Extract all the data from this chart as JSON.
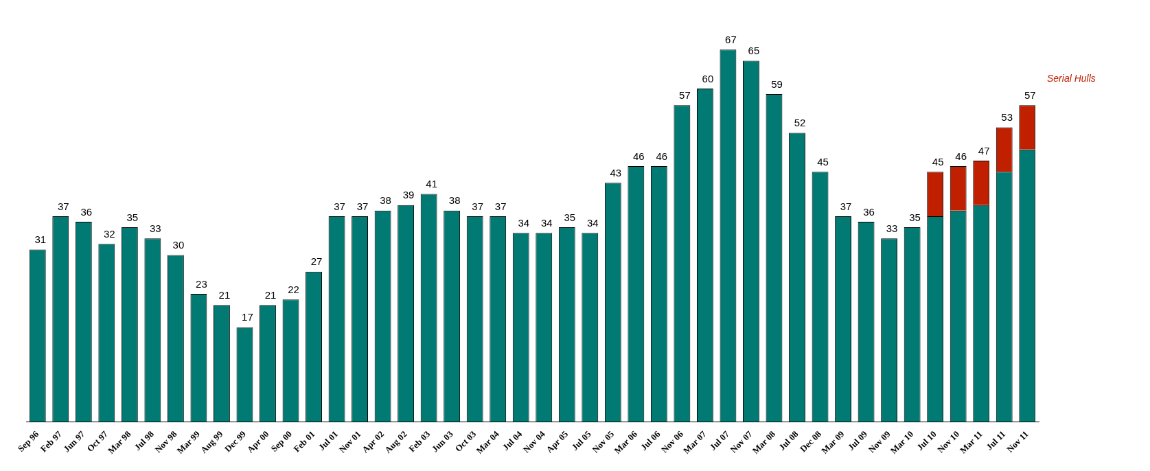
{
  "chart_data": {
    "type": "bar",
    "stacked": true,
    "categories": [
      "Sep 96",
      "Feb 97",
      "Jun 97",
      "Oct 97",
      "Mar 98",
      "Jul 98",
      "Nov 98",
      "Mar 99",
      "Aug 99",
      "Dec 99",
      "Apr 00",
      "Sep 00",
      "Feb 01",
      "Jul 01",
      "Nov 01",
      "Apr 02",
      "Aug 02",
      "Feb 03",
      "Jun 03",
      "Oct 03",
      "Mar 04",
      "Jul 04",
      "Nov 04",
      "Apr 05",
      "Jul 05",
      "Nov 05",
      "Mar 06",
      "Jul 06",
      "Nov 06",
      "Mar 07",
      "Jul 07",
      "Nov 07",
      "Mar 08",
      "Jul 08",
      "Dec 08",
      "Mar 09",
      "Jul 09",
      "Nov 09",
      "Mar 10",
      "Jul 10",
      "Nov 10",
      "Mar 11",
      "Jul 11",
      "Nov 11"
    ],
    "series": [
      {
        "color": "#007a72",
        "values": [
          31,
          37,
          36,
          32,
          35,
          33,
          30,
          23,
          21,
          17,
          21,
          22,
          27,
          37,
          37,
          38,
          39,
          41,
          38,
          37,
          37,
          34,
          34,
          35,
          34,
          43,
          46,
          46,
          57,
          60,
          67,
          65,
          59,
          52,
          45,
          37,
          36,
          33,
          35,
          37,
          38,
          39,
          45,
          49
        ],
        "value_labels": [
          "31",
          "37",
          "36",
          "32",
          "35",
          "33",
          "30",
          "23",
          "21",
          "17",
          "21",
          "22",
          "27",
          "37",
          "37",
          "38",
          "39",
          "41",
          "38",
          "37",
          "37",
          "34",
          "34",
          "35",
          "34",
          "43",
          "46",
          "46",
          "57",
          "60",
          "67",
          "65",
          "59",
          "52",
          "45",
          "37",
          "36",
          "33",
          "35",
          null,
          null,
          null,
          null,
          null
        ]
      },
      {
        "name": "Serial Hulls",
        "color": "#c02000",
        "values": [
          null,
          null,
          null,
          null,
          null,
          null,
          null,
          null,
          null,
          null,
          null,
          null,
          null,
          null,
          null,
          null,
          null,
          null,
          null,
          null,
          null,
          null,
          null,
          null,
          null,
          null,
          null,
          null,
          null,
          null,
          null,
          null,
          null,
          null,
          null,
          null,
          null,
          null,
          null,
          8,
          8,
          8,
          8,
          8
        ]
      }
    ],
    "totals": [
      null,
      null,
      null,
      null,
      null,
      null,
      null,
      null,
      null,
      null,
      null,
      null,
      null,
      null,
      null,
      null,
      null,
      null,
      null,
      null,
      null,
      null,
      null,
      null,
      null,
      null,
      null,
      null,
      null,
      null,
      null,
      null,
      null,
      null,
      null,
      null,
      null,
      null,
      null,
      "45",
      "46",
      "47",
      "53",
      "57"
    ],
    "legend": "top right",
    "grid": false
  }
}
